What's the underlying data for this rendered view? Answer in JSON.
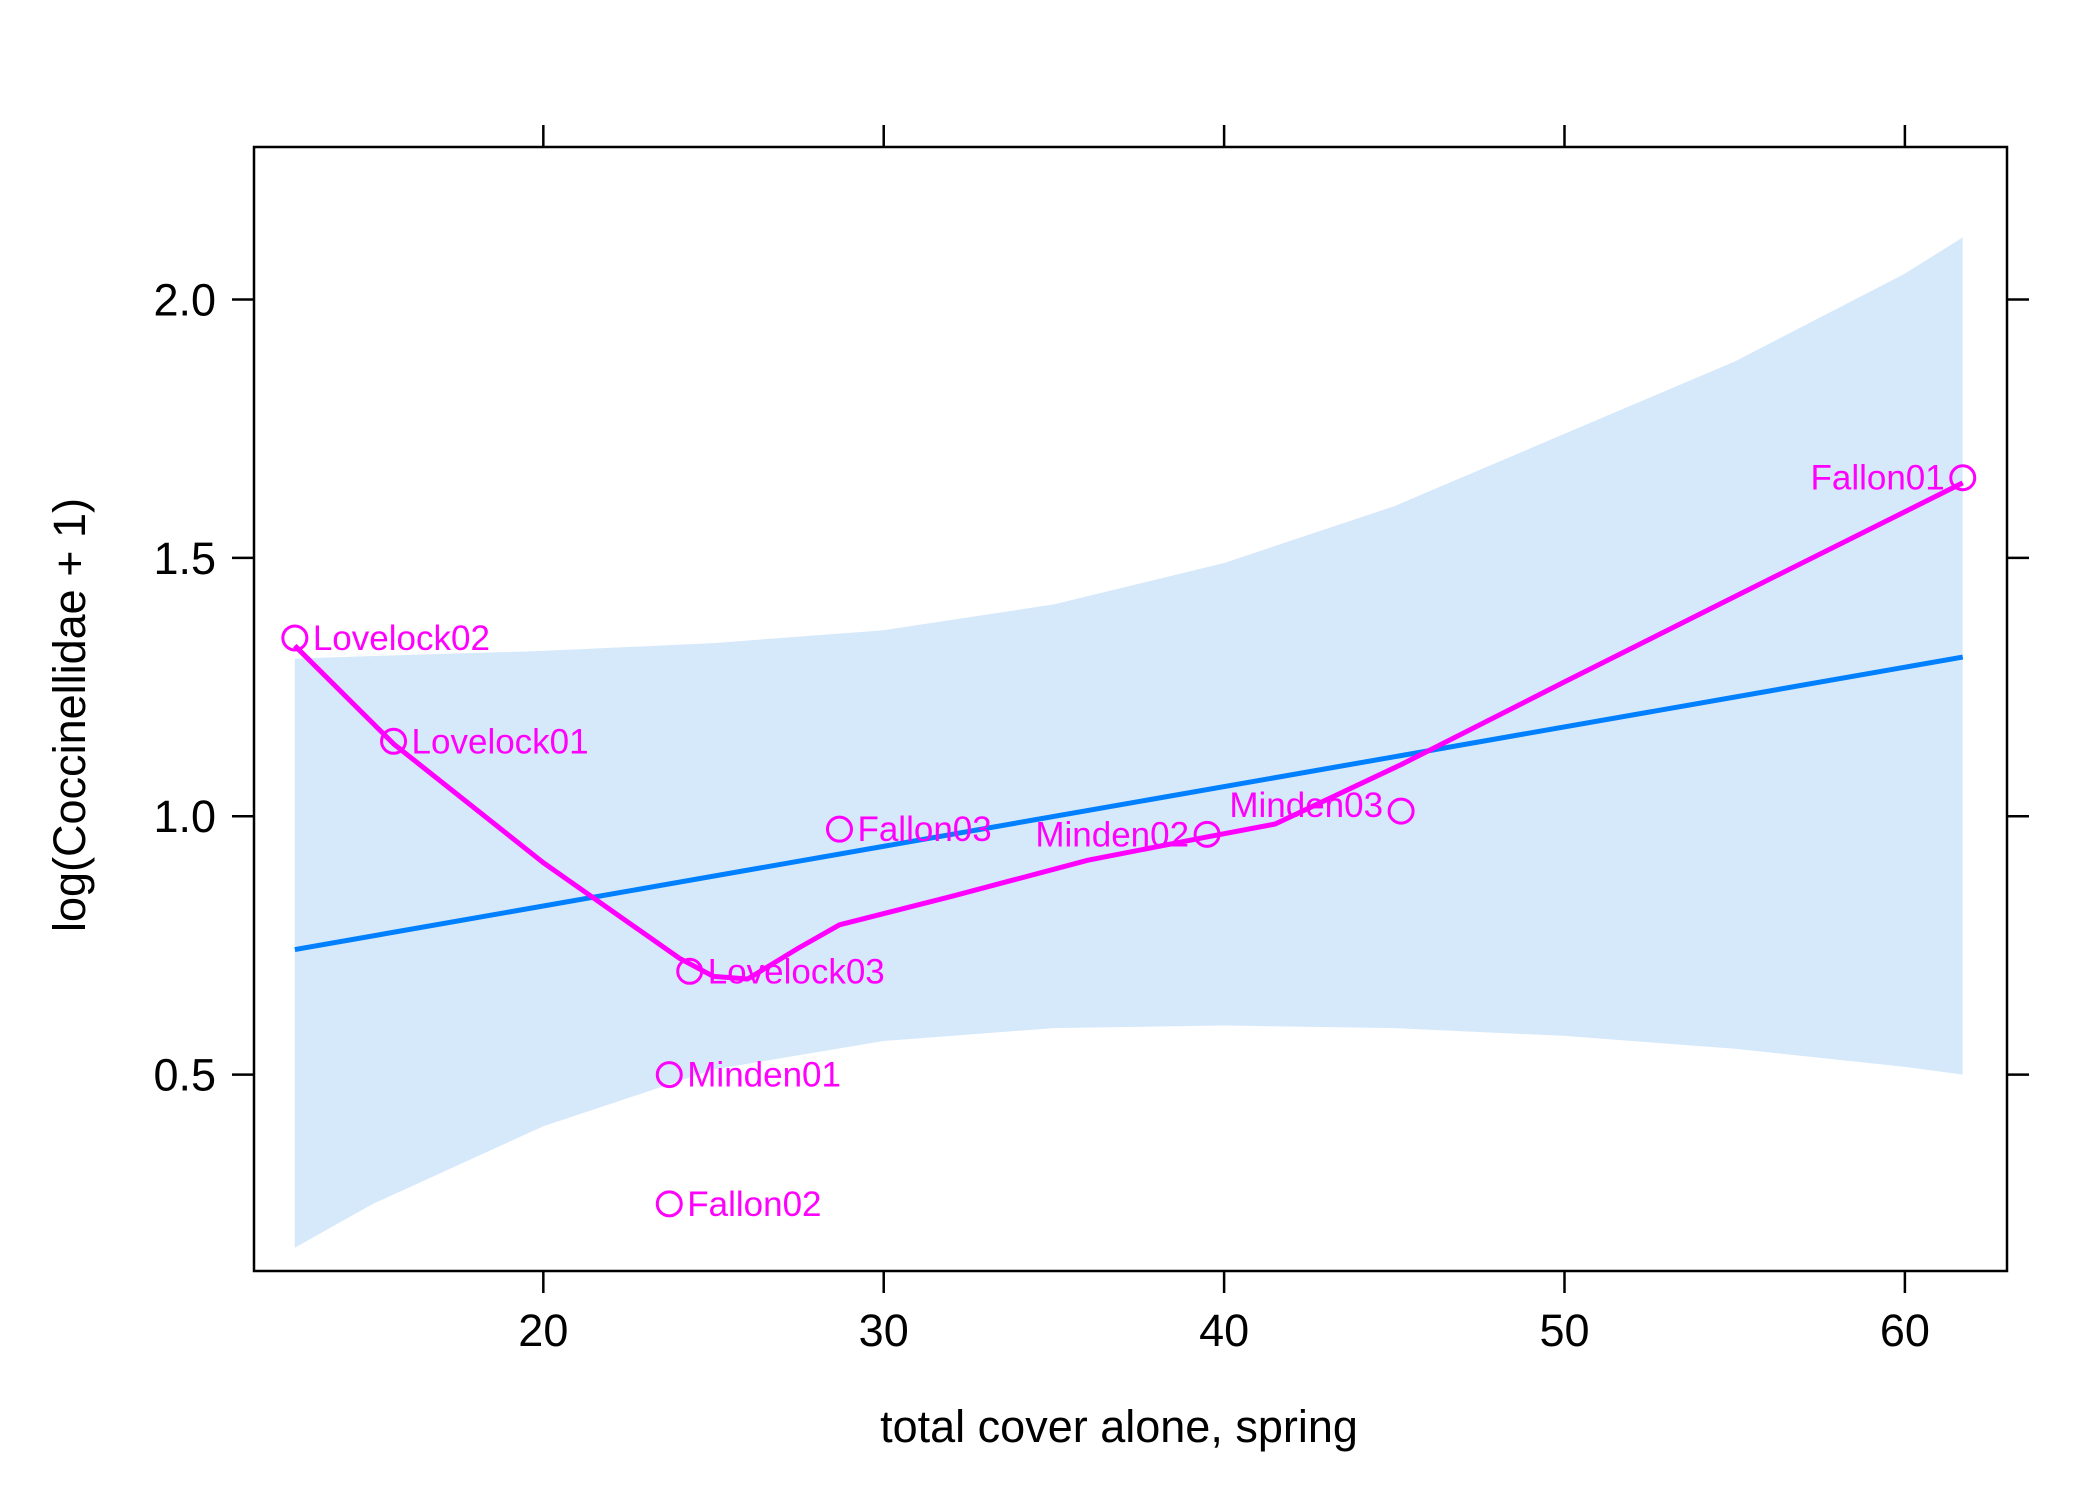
{
  "chart_data": {
    "type": "scatter",
    "title": "",
    "xlabel": "total cover alone, spring",
    "ylabel": "log(Coccinellidae + 1)",
    "xlim": [
      11.5,
      63
    ],
    "ylim": [
      0.12,
      2.295
    ],
    "x_ticks": [
      20,
      30,
      40,
      50,
      60
    ],
    "y_ticks": [
      0.5,
      1.0,
      1.5,
      2.0
    ],
    "x_tick_labels": [
      "20",
      "30",
      "40",
      "50",
      "60"
    ],
    "y_tick_labels": [
      "0.5",
      "1.0",
      "1.5",
      "2.0"
    ],
    "grid": false,
    "colors": {
      "points": "#ff00ff",
      "smooth_line": "#ff00ff",
      "fit_line": "#0080ff",
      "confidence_band": "#d6e9fb",
      "axis": "#000000"
    },
    "points": [
      {
        "label": "Lovelock02",
        "x": 12.7,
        "y": 1.345,
        "label_side": "right"
      },
      {
        "label": "Lovelock01",
        "x": 15.6,
        "y": 1.145,
        "label_side": "right"
      },
      {
        "label": "Lovelock03",
        "x": 24.3,
        "y": 0.7,
        "label_side": "right"
      },
      {
        "label": "Minden01",
        "x": 23.7,
        "y": 0.5,
        "label_side": "right"
      },
      {
        "label": "Fallon02",
        "x": 23.7,
        "y": 0.25,
        "label_side": "right"
      },
      {
        "label": "Fallon03",
        "x": 28.7,
        "y": 0.975,
        "label_side": "right"
      },
      {
        "label": "Minden02",
        "x": 39.5,
        "y": 0.965,
        "label_side": "left"
      },
      {
        "label": "Minden03",
        "x": 45.2,
        "y": 1.01,
        "label_side": "left-above"
      },
      {
        "label": "Fallon01",
        "x": 61.7,
        "y": 1.655,
        "label_side": "left"
      }
    ],
    "fit_line": {
      "x": [
        12.7,
        61.7
      ],
      "y": [
        0.742,
        1.308
      ]
    },
    "confidence_band": {
      "x": [
        12.7,
        15,
        20,
        25,
        30,
        35,
        40,
        45,
        50,
        55,
        60,
        61.7
      ],
      "upper": [
        1.305,
        1.31,
        1.32,
        1.335,
        1.36,
        1.41,
        1.49,
        1.6,
        1.74,
        1.88,
        2.05,
        2.12
      ],
      "lower": [
        0.165,
        0.25,
        0.4,
        0.51,
        0.565,
        0.59,
        0.595,
        0.59,
        0.575,
        0.55,
        0.515,
        0.5
      ]
    },
    "smooth_line": {
      "x": [
        12.7,
        15.6,
        20,
        24,
        25,
        26,
        27.5,
        28.7,
        32,
        36,
        39.5,
        41.5,
        45.2,
        50,
        55,
        61.7
      ],
      "y": [
        1.33,
        1.14,
        0.91,
        0.725,
        0.69,
        0.685,
        0.745,
        0.79,
        0.845,
        0.915,
        0.96,
        0.985,
        1.1,
        1.26,
        1.425,
        1.645
      ]
    }
  }
}
